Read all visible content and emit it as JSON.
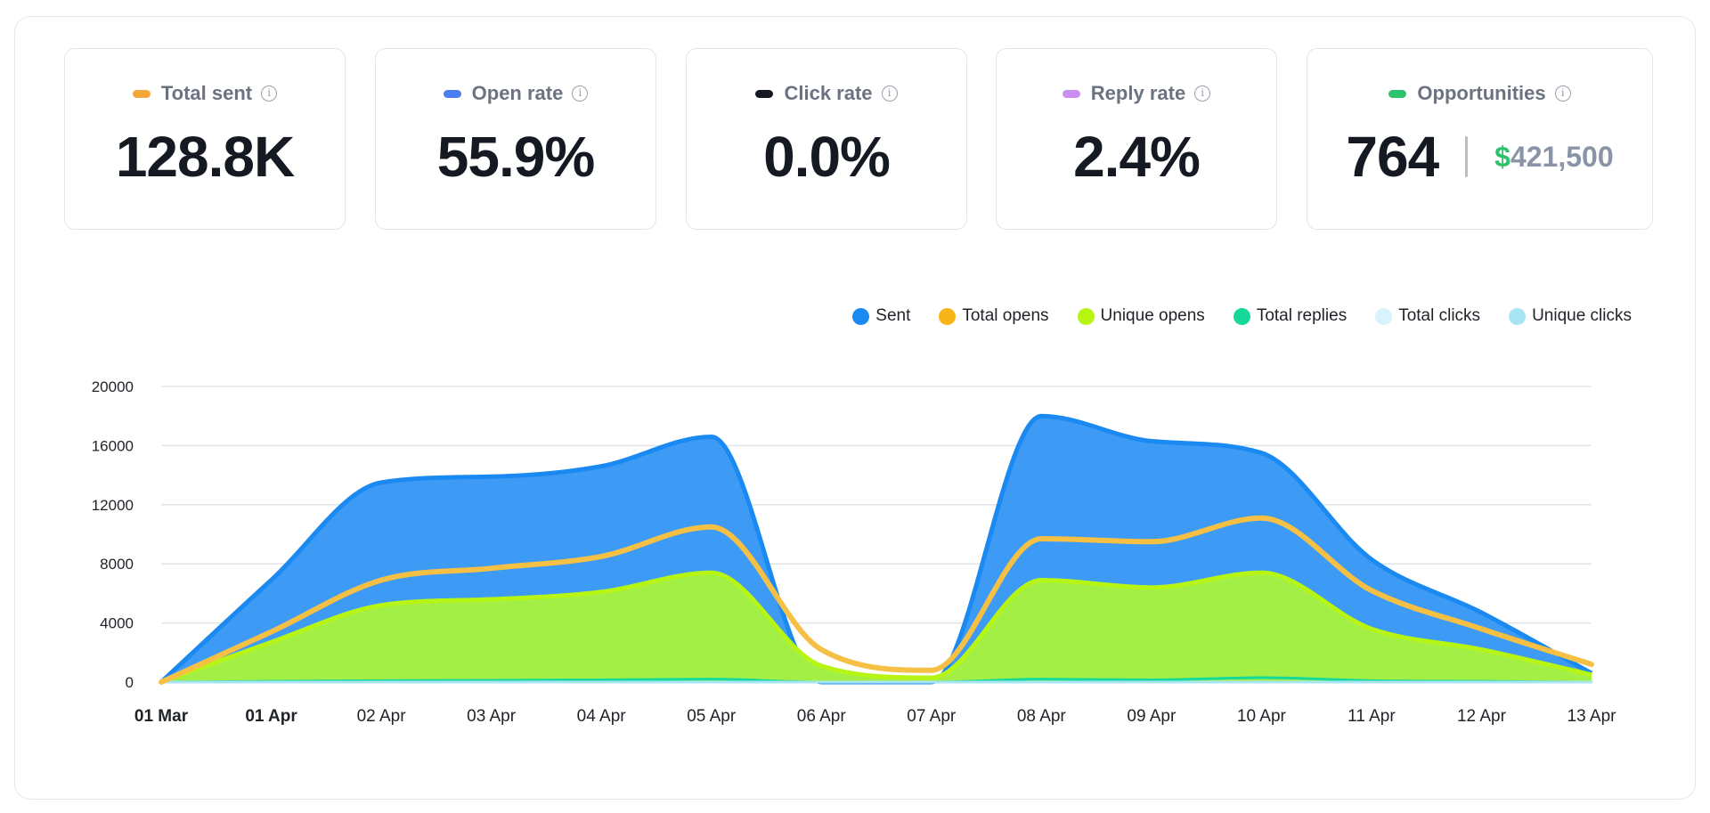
{
  "cards": [
    {
      "label": "Total sent",
      "value": "128.8K",
      "color": "#f5a83a"
    },
    {
      "label": "Open rate",
      "value": "55.9%",
      "color": "#4d7ef0"
    },
    {
      "label": "Click rate",
      "value": "0.0%",
      "color": "#151a22"
    },
    {
      "label": "Reply rate",
      "value": "2.4%",
      "color": "#c98ef0"
    },
    {
      "label": "Opportunities",
      "count": "764",
      "currency": "$",
      "amount": "421,500",
      "color": "#2dc26b"
    }
  ],
  "info_icon": "info-icon",
  "chart_data": {
    "type": "area",
    "x": [
      "01 Mar",
      "01 Apr",
      "02 Apr",
      "03 Apr",
      "04 Apr",
      "05 Apr",
      "06 Apr",
      "07 Apr",
      "08 Apr",
      "09 Apr",
      "10 Apr",
      "11 Apr",
      "12 Apr",
      "13 Apr"
    ],
    "bold_ticks": [
      "01 Mar",
      "01 Apr"
    ],
    "yticks": [
      0,
      4000,
      8000,
      12000,
      16000,
      20000
    ],
    "ylim": [
      0,
      20000
    ],
    "grid": true,
    "legend_position": "top-right",
    "series": [
      {
        "name": "Sent",
        "color": "#1a8af2",
        "fill": "#3d9af5",
        "style": "area",
        "values": [
          0,
          6900,
          13500,
          13900,
          14600,
          16600,
          0,
          0,
          18000,
          16300,
          15500,
          8300,
          4700,
          600
        ]
      },
      {
        "name": "Total opens",
        "color": "#f5c044",
        "style": "line",
        "values": [
          0,
          3400,
          6900,
          7700,
          8500,
          10500,
          2200,
          800,
          9700,
          9500,
          11100,
          6200,
          3600,
          1200
        ]
      },
      {
        "name": "Unique opens",
        "color": "#b7f514",
        "fill": "#a4ef45",
        "style": "area",
        "values": [
          0,
          2700,
          5200,
          5600,
          6100,
          7400,
          1100,
          300,
          6900,
          6400,
          7400,
          3600,
          2200,
          500
        ]
      },
      {
        "name": "Total replies",
        "color": "#14d99a",
        "style": "line",
        "values": [
          0,
          50,
          100,
          120,
          150,
          200,
          0,
          0,
          200,
          150,
          300,
          100,
          50,
          0
        ]
      },
      {
        "name": "Total clicks",
        "color": "#d8f3fb",
        "style": "line",
        "values": [
          0,
          0,
          0,
          0,
          0,
          0,
          0,
          0,
          0,
          0,
          0,
          0,
          0,
          0
        ]
      },
      {
        "name": "Unique clicks",
        "color": "#a9e4f3",
        "style": "line",
        "values": [
          0,
          0,
          0,
          0,
          0,
          0,
          0,
          0,
          0,
          0,
          0,
          0,
          0,
          0
        ]
      }
    ]
  }
}
